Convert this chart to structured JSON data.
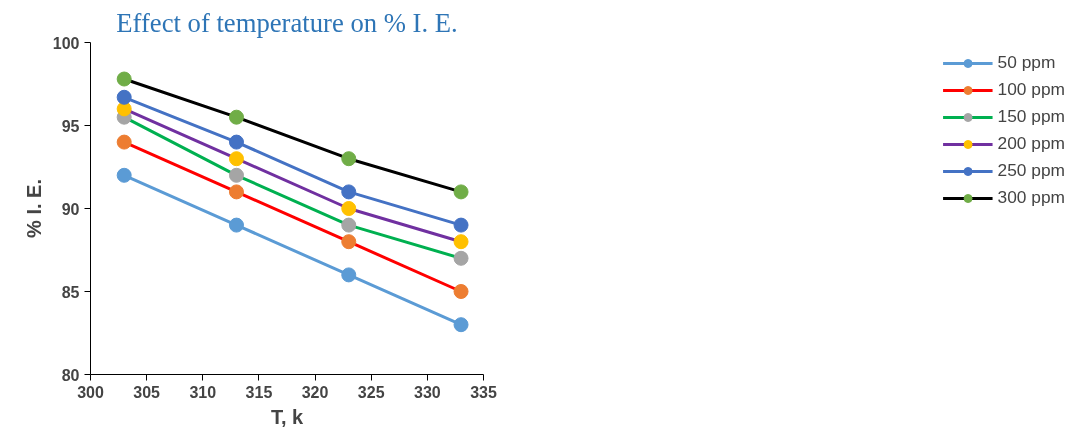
{
  "chart_data": {
    "type": "line",
    "title": "Effect of temperature on % I. E.",
    "xlabel": "T, k",
    "ylabel": "% I. E.",
    "x": [
      303,
      313,
      323,
      333
    ],
    "xlim": [
      300,
      335
    ],
    "xticks": [
      300,
      305,
      310,
      315,
      320,
      325,
      330,
      335
    ],
    "ylim": [
      80,
      100
    ],
    "yticks": [
      80,
      85,
      90,
      95,
      100
    ],
    "grid": false,
    "legend": "right",
    "marker": "circle",
    "line_style": "solid",
    "series": [
      {
        "name": "50 ppm",
        "color": "#5b9bd5",
        "colors": [
          "#5b9bd5",
          "#5b9bd5",
          "#5b9bd5",
          "#5b9bd5"
        ],
        "values": [
          92,
          89,
          86,
          83
        ]
      },
      {
        "name": "100 ppm",
        "color": "#ff0000",
        "colors": [
          "#ed7d31",
          "#ed7d31",
          "#ed7d31",
          "#ed7d31"
        ],
        "values": [
          94,
          91,
          88,
          85
        ]
      },
      {
        "name": "150 ppm",
        "color": "#00b050",
        "colors": [
          "#a5a5a5",
          "#a5a5a5",
          "#a5a5a5",
          "#a5a5a5"
        ],
        "values": [
          95.5,
          92,
          89,
          87
        ]
      },
      {
        "name": "200 ppm",
        "color": "#7030a0",
        "colors": [
          "#ffc000",
          "#ffc000",
          "#ffc000",
          "#ffc000"
        ],
        "values": [
          96,
          93,
          90,
          88
        ]
      },
      {
        "name": "250 ppm",
        "color": "#4472c4",
        "colors": [
          "#4472c4",
          "#4472c4",
          "#4472c4",
          "#4472c4"
        ],
        "values": [
          96.7,
          94,
          91,
          89
        ]
      },
      {
        "name": "300 ppm",
        "color": "#000000",
        "colors": [
          "#70ad47",
          "#70ad47",
          "#70ad47",
          "#70ad47"
        ],
        "values": [
          97.8,
          95.5,
          93,
          91
        ]
      }
    ]
  }
}
